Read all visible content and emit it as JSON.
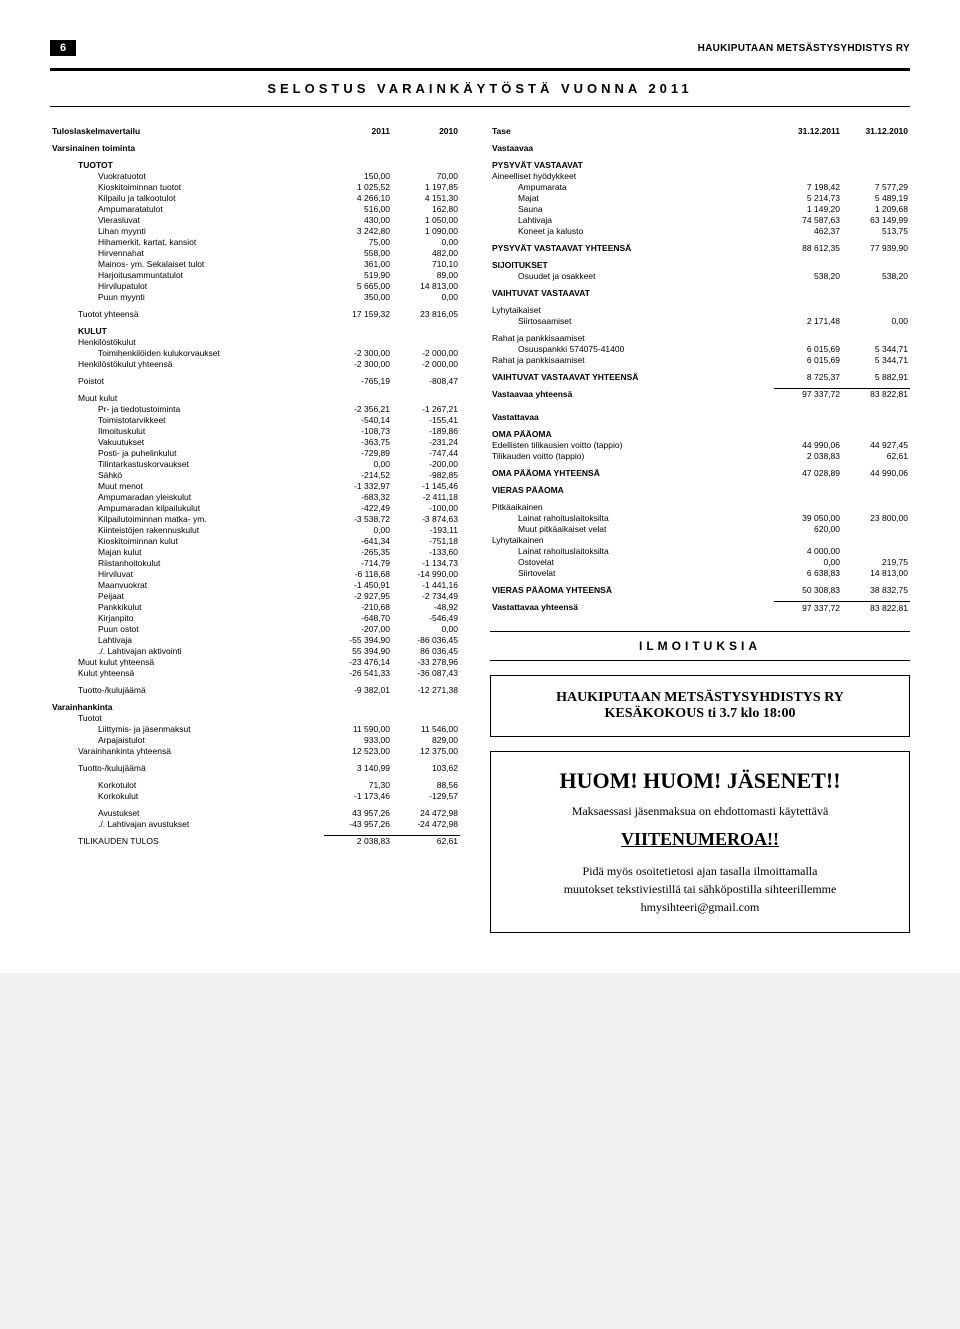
{
  "page_number": "6",
  "assoc": "HAUKIPUTAAN METSÄSTYSYHDISTYS RY",
  "title": "SELOSTUS  VARAINKÄYTÖSTÄ  VUONNA  2011",
  "left": {
    "heading": "Tuloslaskelmavertailu",
    "year1": "2011",
    "year2": "2010",
    "varsinainen": "Varsinainen toiminta",
    "tuotot_label": "TUOTOT",
    "tuotot": [
      {
        "l": "Vuokratuotot",
        "a": "150,00",
        "b": "70,00"
      },
      {
        "l": "Kioskitoiminnan tuotot",
        "a": "1 025,52",
        "b": "1 197,85"
      },
      {
        "l": "Kilpailu ja talkootulot",
        "a": "4 266,10",
        "b": "4 151,30"
      },
      {
        "l": "Ampumaratatulot",
        "a": "516,00",
        "b": "162,80"
      },
      {
        "l": "Vierasluvat",
        "a": "430,00",
        "b": "1 050,00"
      },
      {
        "l": "Lihan myynti",
        "a": "3 242,80",
        "b": "1 090,00"
      },
      {
        "l": "Hihamerkit, kartat, kansiot",
        "a": "75,00",
        "b": "0,00"
      },
      {
        "l": "Hirvennahat",
        "a": "558,00",
        "b": "482,00"
      },
      {
        "l": "Mainos- ym. Sekalaiset tulot",
        "a": "361,00",
        "b": "710,10"
      },
      {
        "l": "Harjoitusammuntatulot",
        "a": "519,90",
        "b": "89,00"
      },
      {
        "l": "Hirvilupatulot",
        "a": "5 665,00",
        "b": "14 813,00"
      },
      {
        "l": "Puun myynti",
        "a": "350,00",
        "b": "0,00"
      }
    ],
    "tuotot_yht": {
      "l": "Tuotot yhteensä",
      "a": "17 159,32",
      "b": "23 816,05"
    },
    "kulut_label": "KULUT",
    "henk_label": "Henkilöstökulut",
    "henk_row": {
      "l": "Toimihenkilöiden kulukorvaukset",
      "a": "-2 300,00",
      "b": "-2 000,00"
    },
    "henk_yht": {
      "l": "Henkilöstökulut yhteensä",
      "a": "-2 300,00",
      "b": "-2 000,00"
    },
    "poistot": {
      "l": "Poistot",
      "a": "-765,19",
      "b": "-808,47"
    },
    "muut_label": "Muut kulut",
    "muut": [
      {
        "l": "Pr- ja tiedotustoiminta",
        "a": "-2 356,21",
        "b": "-1 267,21"
      },
      {
        "l": "Toimistotarvikkeet",
        "a": "-540,14",
        "b": "-155,41"
      },
      {
        "l": "Ilmoituskulut",
        "a": "-108,73",
        "b": "-189,86"
      },
      {
        "l": "Vakuutukset",
        "a": "-363,75",
        "b": "-231,24"
      },
      {
        "l": "Posti- ja puhelinkulut",
        "a": "-729,89",
        "b": "-747,44"
      },
      {
        "l": "Tilintarkastuskorvaukset",
        "a": "0,00",
        "b": "-200,00"
      },
      {
        "l": "Sähkö",
        "a": "-214,52",
        "b": "-982,85"
      },
      {
        "l": "Muut menot",
        "a": "-1 332,97",
        "b": "-1 145,46"
      },
      {
        "l": "Ampumaradan yleiskulut",
        "a": "-683,32",
        "b": "-2 411,18"
      },
      {
        "l": "Ampumaradan kilpailukulut",
        "a": "-422,49",
        "b": "-100,00"
      },
      {
        "l": "Kilpailutoiminnan matka- ym.",
        "a": "-3 538,72",
        "b": "-3 874,63"
      },
      {
        "l": "Kiinteistöjen rakennuskulut",
        "a": "0,00",
        "b": "-193,11"
      },
      {
        "l": "Kioskitoiminnan kulut",
        "a": "-641,34",
        "b": "-751,18"
      },
      {
        "l": "Majan kulut",
        "a": "-265,35",
        "b": "-133,60"
      },
      {
        "l": "Riistanhoitokulut",
        "a": "-714,79",
        "b": "-1 134,73"
      },
      {
        "l": "Hirviluvat",
        "a": "-6 118,68",
        "b": "-14 990,00"
      },
      {
        "l": "Maanvuokrat",
        "a": "-1 450,91",
        "b": "-1 441,16"
      },
      {
        "l": "Peijaat",
        "a": "-2 927,95",
        "b": "-2 734,49"
      },
      {
        "l": "Pankkikulut",
        "a": "-210,68",
        "b": "-48,92"
      },
      {
        "l": "Kirjanpito",
        "a": "-648,70",
        "b": "-546,49"
      },
      {
        "l": "Puun ostot",
        "a": "-207,00",
        "b": "0,00"
      },
      {
        "l": "Lahtivaja",
        "a": "-55 394,90",
        "b": "-86 036,45"
      },
      {
        "l": "./. Lahtivajan aktivointi",
        "a": "55 394,90",
        "b": "86 036,45"
      }
    ],
    "muut_yht": {
      "l": "Muut kulut yhteensä",
      "a": "-23 476,14",
      "b": "-33 278,96"
    },
    "kulut_yht": {
      "l": "Kulut yhteensä",
      "a": "-26 541,33",
      "b": "-36 087,43"
    },
    "tuotto_kulu_1": {
      "l": "Tuotto-/kulujäämä",
      "a": "-9 382,01",
      "b": "-12 271,38"
    },
    "varain_label": "Varainhankinta",
    "varain_tuotot_lbl": "Tuotot",
    "varain": [
      {
        "l": "Liittymis- ja jäsenmaksut",
        "a": "11 590,00",
        "b": "11 546,00"
      },
      {
        "l": "Arpajaistulot",
        "a": "933,00",
        "b": "829,00"
      }
    ],
    "varain_yht": {
      "l": "Varainhankinta yhteensä",
      "a": "12 523,00",
      "b": "12 375,00"
    },
    "tuotto_kulu_2": {
      "l": "Tuotto-/kulujäämä",
      "a": "3 140,99",
      "b": "103,62"
    },
    "korot": [
      {
        "l": "Korkotulot",
        "a": "71,30",
        "b": "88,56"
      },
      {
        "l": "Korkokulut",
        "a": "-1 173,46",
        "b": "-129,57"
      }
    ],
    "avust": [
      {
        "l": "Avustukset",
        "a": "43 957,26",
        "b": "24 472,98"
      },
      {
        "l": "./. Lahtivajan avustukset",
        "a": "-43 957,26",
        "b": "-24 472,98"
      }
    ],
    "tilikauden": {
      "l": "TILIKAUDEN TULOS",
      "a": "2 038,83",
      "b": "62,61"
    }
  },
  "right": {
    "heading": "Tase",
    "year1": "31.12.2011",
    "year2": "31.12.2010",
    "vastaavaa_label": "Vastaavaa",
    "pysyvat_label": "PYSYVÄT VASTAAVAT",
    "aineelliset_label": "Aineelliset hyödykkeet",
    "aineelliset": [
      {
        "l": "Ampumarata",
        "a": "7 198,42",
        "b": "7 577,29"
      },
      {
        "l": "Majat",
        "a": "5 214,73",
        "b": "5 489,19"
      },
      {
        "l": "Sauna",
        "a": "1 149,20",
        "b": "1 209,68"
      },
      {
        "l": "Lahtivaja",
        "a": "74 587,63",
        "b": "63 149,99"
      },
      {
        "l": "Koneet ja kalusto",
        "a": "462,37",
        "b": "513,75"
      }
    ],
    "pysyvat_yht": {
      "l": "PYSYVÄT VASTAAVAT YHTEENSÄ",
      "a": "88 612,35",
      "b": "77 939,90"
    },
    "sijoitukset_label": "SIJOITUKSET",
    "sijoitukset": {
      "l": "Osuudet ja osakkeet",
      "a": "538,20",
      "b": "538,20"
    },
    "vaihtuvat_label": "VAIHTUVAT VASTAAVAT",
    "lyhytaikaiset_label": "Lyhytaikaiset",
    "siirto": {
      "l": "Siirtosaamiset",
      "a": "2 171,48",
      "b": "0,00"
    },
    "rahat_label": "Rahat ja pankkisaamiset",
    "osuuspankki": {
      "l": "Osuuspankki 574075-41400",
      "a": "6 015,69",
      "b": "5 344,71"
    },
    "rahat_yht": {
      "l": "Rahat ja pankkisaamiset",
      "a": "6 015,69",
      "b": "5 344,71"
    },
    "vaihtuvat_yht": {
      "l": "VAIHTUVAT VASTAAVAT YHTEENSÄ",
      "a": "8 725,37",
      "b": "5 882,91"
    },
    "vastaavaa_yht": {
      "l": "Vastaavaa yhteensä",
      "a": "97 337,72",
      "b": "83 822,81"
    },
    "vastattavaa_label": "Vastattavaa",
    "oma_label": "OMA PÄÄOMA",
    "oma": [
      {
        "l": "Edellisten tilikausien voitto (tappio)",
        "a": "44 990,06",
        "b": "44 927,45"
      },
      {
        "l": "Tilikauden voitto (tappio)",
        "a": "2 038,83",
        "b": "62,61"
      }
    ],
    "oma_yht": {
      "l": "OMA PÄÄOMA YHTEENSÄ",
      "a": "47 028,89",
      "b": "44 990,06"
    },
    "vieras_label": "VIERAS PÄÄOMA",
    "pitka_label": "Pitkäaikainen",
    "pitka": [
      {
        "l": "Lainat rahoituslaitoksilta",
        "a": "39 050,00",
        "b": "23 800,00"
      },
      {
        "l": "Muut pitkäaikaiset velat",
        "a": "620,00",
        "b": ""
      }
    ],
    "lyhyt_label": "Lyhytaikainen",
    "lyhyt": [
      {
        "l": "Lainat rahoituslaitoksilta",
        "a": "4 000,00",
        "b": ""
      },
      {
        "l": "Ostovelat",
        "a": "0,00",
        "b": "219,75"
      },
      {
        "l": "Siirtovelat",
        "a": "6 638,83",
        "b": "14 813,00"
      }
    ],
    "vieras_yht": {
      "l": "VIERAS PÄÄOMA YHTEENSÄ",
      "a": "50 308,83",
      "b": "38 832,75"
    },
    "vastattavaa_yht": {
      "l": "Vastattavaa yhteensä",
      "a": "97 337,72",
      "b": "83 822,81"
    }
  },
  "notices": {
    "section_title": "ILMOITUKSIA",
    "box1_l1": "HAUKIPUTAAN METSÄSTYSYHDISTYS RY",
    "box1_l2": "KESÄKOKOUS ti 3.7 klo 18:00",
    "box2_title": "HUOM! HUOM! JÄSENET!!",
    "box2_line1": "Maksaessasi jäsenmaksua on ehdottomasti käytettävä",
    "box2_big": "VIITENUMEROA!!",
    "box2_body1": "Pidä myös osoitetietosi ajan tasalla ilmoittamalla",
    "box2_body2": "muutokset tekstiviestillä tai sähköpostilla sihteerillemme",
    "box2_email": "hmysihteeri@gmail.com"
  }
}
